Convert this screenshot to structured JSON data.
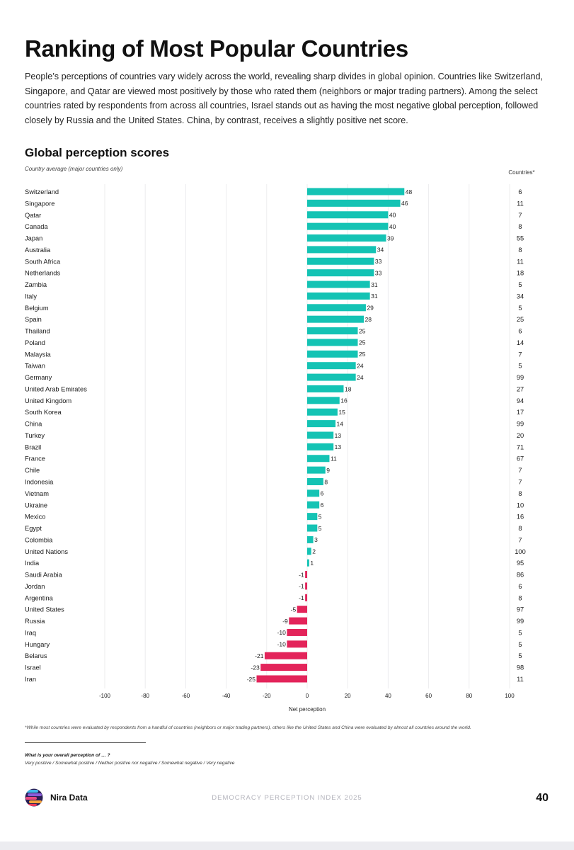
{
  "header": {
    "title": "Ranking of Most Popular Countries",
    "intro": "People’s perceptions of countries vary widely across the world, revealing sharp divides in global opinion. Countries like Switzerland, Singapore, and Qatar are viewed most positively by those who rated them (neighbors or major trading partners). Among the select countries rated by respondents from across all countries, Israel stands out as having the most negative global perception, followed closely by Russia and the United States. China, by contrast, receives a slightly positive net score."
  },
  "chart_data": {
    "type": "bar",
    "orientation": "horizontal",
    "title": "Global perception scores",
    "subtitle": "Country average (major countries only)",
    "xlabel": "Net perception",
    "xlim": [
      -100,
      100
    ],
    "xticks": [
      -100,
      -80,
      -60,
      -40,
      -20,
      0,
      20,
      40,
      60,
      80,
      100
    ],
    "count_column_label": "Countries*",
    "categories": [
      "Switzerland",
      "Singapore",
      "Qatar",
      "Canada",
      "Japan",
      "Australia",
      "South Africa",
      "Netherlands",
      "Zambia",
      "Italy",
      "Belgium",
      "Spain",
      "Thailand",
      "Poland",
      "Malaysia",
      "Taiwan",
      "Germany",
      "United Arab Emirates",
      "United Kingdom",
      "South Korea",
      "China",
      "Turkey",
      "Brazil",
      "France",
      "Chile",
      "Indonesia",
      "Vietnam",
      "Ukraine",
      "Mexico",
      "Egypt",
      "Colombia",
      "United Nations",
      "India",
      "Saudi Arabia",
      "Jordan",
      "Argentina",
      "United States",
      "Russia",
      "Iraq",
      "Hungary",
      "Belarus",
      "Israel",
      "Iran"
    ],
    "values": [
      48,
      46,
      40,
      40,
      39,
      34,
      33,
      33,
      31,
      31,
      29,
      28,
      25,
      25,
      25,
      24,
      24,
      18,
      16,
      15,
      14,
      13,
      13,
      11,
      9,
      8,
      6,
      6,
      5,
      5,
      3,
      2,
      1,
      -1,
      -1,
      -1,
      -5,
      -9,
      -10,
      -10,
      -21,
      -23,
      -25
    ],
    "countries_rated_by": [
      6,
      11,
      7,
      8,
      55,
      8,
      11,
      18,
      5,
      34,
      5,
      25,
      6,
      14,
      7,
      5,
      99,
      27,
      94,
      17,
      99,
      20,
      71,
      67,
      7,
      7,
      8,
      10,
      16,
      8,
      7,
      100,
      95,
      86,
      6,
      8,
      97,
      99,
      5,
      5,
      5,
      98,
      11
    ],
    "colors": {
      "positive": "#14c3b4",
      "negative": "#e3245a"
    }
  },
  "footnote": "*While most countries were evaluated by respondents from a handful of countries (neighbors or major trading partners), others like the United States and China were evaluated by almost all countries around the world.",
  "question": {
    "text": "What is your overall perception of  … ?",
    "options": "Very positive / Somewhat positive / Neither positive nor negative / Somewhat negative / Very negative"
  },
  "footer": {
    "brand": "Nira Data",
    "logo_icon": "nira-data-logo-icon",
    "report_title": "DEMOCRACY PERCEPTION INDEX 2025",
    "page_number": "40"
  }
}
